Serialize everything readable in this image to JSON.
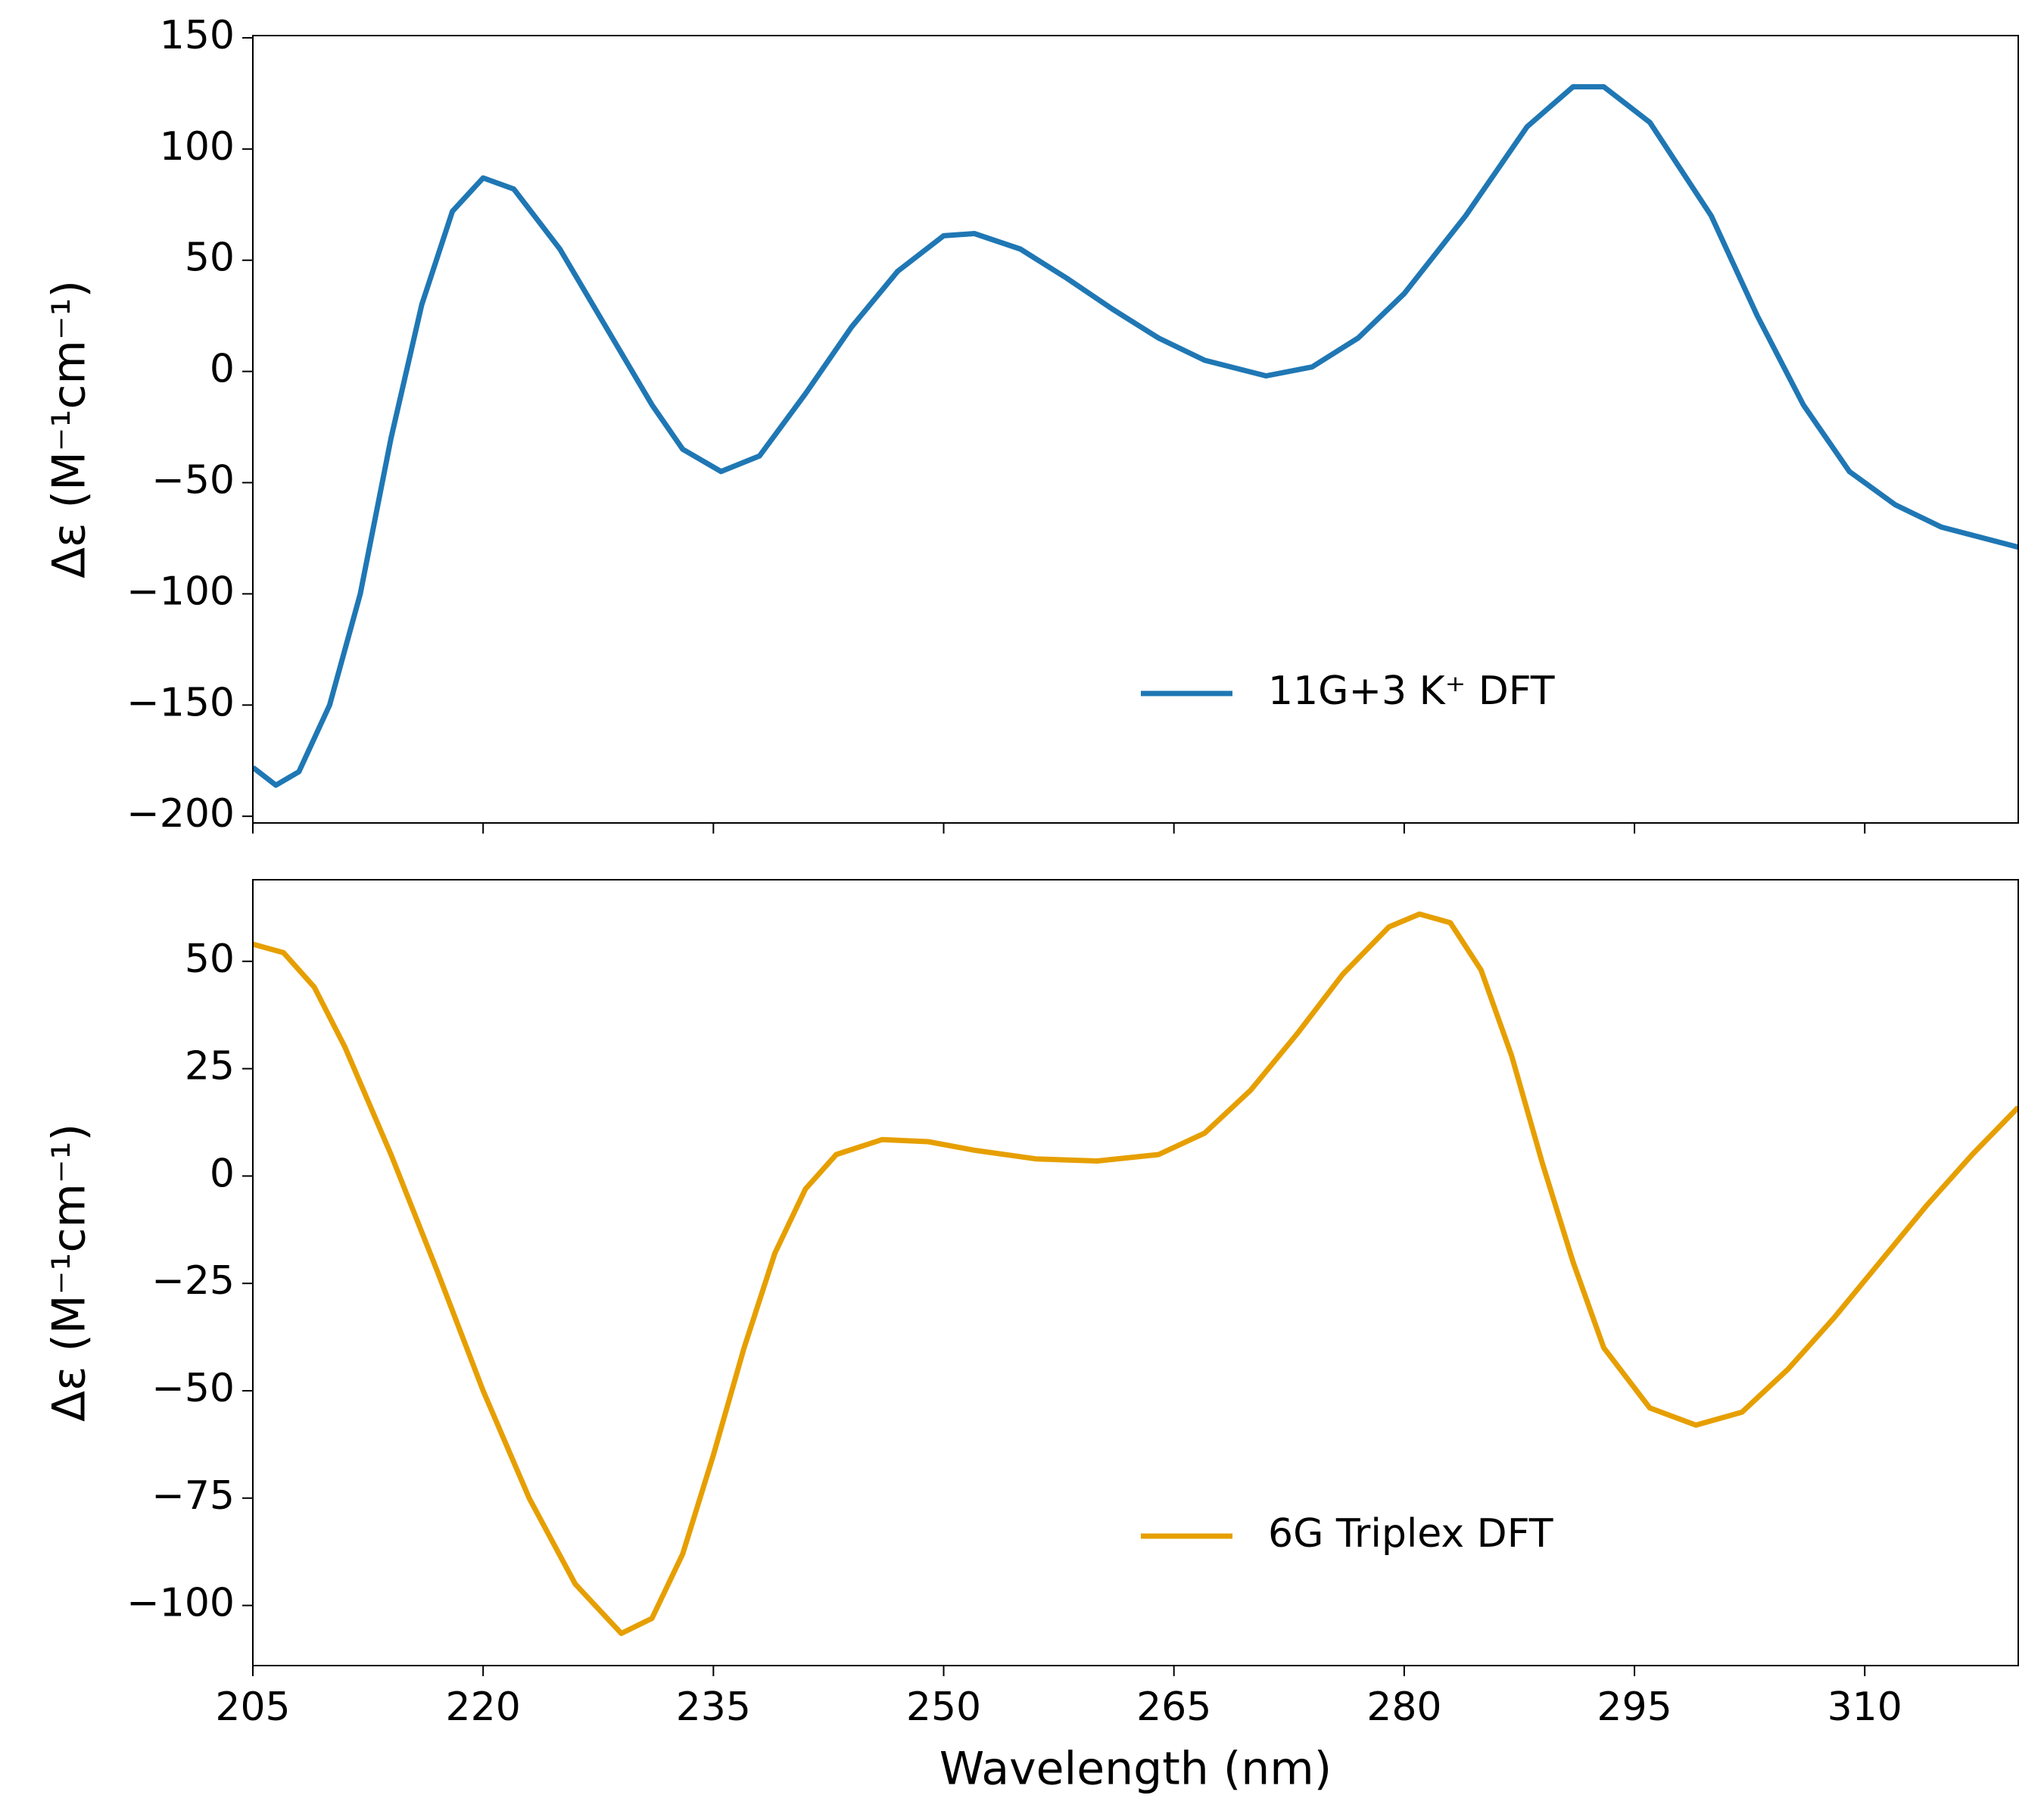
{
  "chart_data": [
    {
      "type": "line",
      "ylabel": "Δε (M⁻¹cm⁻¹)",
      "xlim": [
        205,
        320
      ],
      "ylim": [
        -203,
        151
      ],
      "yticks": [
        {
          "value": -200,
          "label": "−200"
        },
        {
          "value": -150,
          "label": "−150"
        },
        {
          "value": -100,
          "label": "−100"
        },
        {
          "value": -50,
          "label": "−50"
        },
        0,
        50,
        100,
        150
      ],
      "legend": "lower center",
      "x": [
        205,
        206.5,
        208,
        210,
        212,
        214,
        216,
        218,
        220,
        222,
        225,
        228,
        231,
        233,
        235.5,
        238,
        241,
        244,
        247,
        250,
        252,
        255,
        258,
        261,
        264,
        267,
        271,
        274,
        277,
        280,
        284,
        288,
        291,
        293,
        296,
        300,
        303,
        306,
        309,
        312,
        315,
        320
      ],
      "series": [
        {
          "name": "11G+3 K⁺ DFT",
          "color": "#1f77b4",
          "values": [
            -178,
            -186,
            -180,
            -150,
            -100,
            -30,
            30,
            72,
            87,
            82,
            55,
            20,
            -15,
            -35,
            -45,
            -38,
            -10,
            20,
            45,
            61,
            62,
            55,
            42,
            28,
            15,
            5,
            -2,
            2,
            15,
            35,
            70,
            110,
            128,
            128,
            112,
            70,
            25,
            -15,
            -45,
            -60,
            -70,
            -79
          ]
        }
      ]
    },
    {
      "type": "line",
      "xlabel": "Wavelength (nm)",
      "ylabel": "Δε (M⁻¹cm⁻¹)",
      "xlim": [
        205,
        320
      ],
      "ylim": [
        -114,
        69
      ],
      "xticks": [
        205,
        220,
        235,
        250,
        265,
        280,
        295,
        310
      ],
      "yticks": [
        {
          "value": -100,
          "label": "−100"
        },
        {
          "value": -75,
          "label": "−75"
        },
        {
          "value": -50,
          "label": "−50"
        },
        {
          "value": -25,
          "label": "−25"
        },
        0,
        25,
        50
      ],
      "legend": "lower center",
      "x": [
        205,
        207,
        209,
        211,
        214,
        217,
        220,
        223,
        226,
        229,
        231,
        233,
        235,
        237,
        239,
        241,
        243,
        246,
        249,
        252,
        256,
        260,
        264,
        267,
        270,
        273,
        276,
        279,
        281,
        283,
        285,
        287,
        289,
        291,
        293,
        296,
        299,
        302,
        305,
        308,
        311,
        314,
        317,
        320
      ],
      "series": [
        {
          "name": "6G Triplex DFT",
          "color": "#e69f00",
          "values": [
            54,
            52,
            44,
            30,
            5,
            -22,
            -50,
            -75,
            -95,
            -106.5,
            -103,
            -88,
            -65,
            -40,
            -18,
            -3,
            5,
            8.5,
            8,
            6,
            4,
            3.5,
            5,
            10,
            20,
            33,
            47,
            58,
            61,
            59,
            48,
            28,
            3,
            -20,
            -40,
            -54,
            -58,
            -55,
            -45,
            -33,
            -20,
            -7,
            5,
            16
          ]
        }
      ]
    }
  ]
}
